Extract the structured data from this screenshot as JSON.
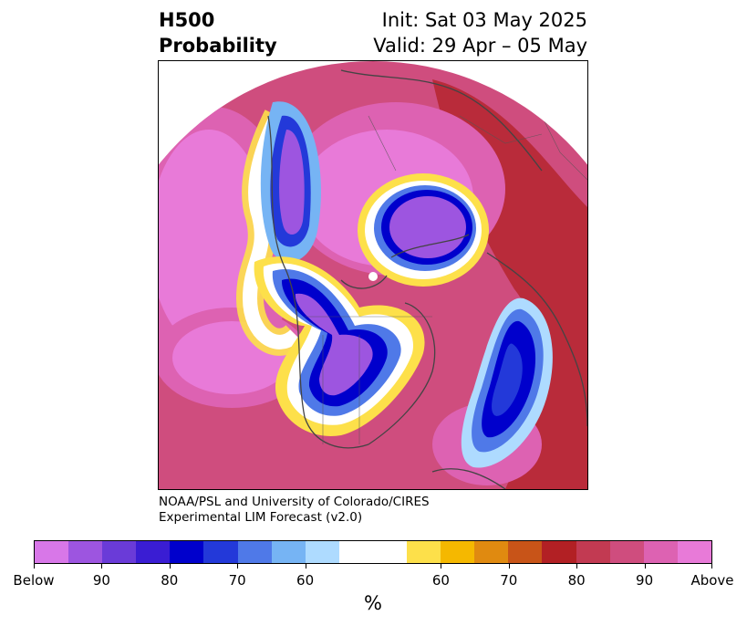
{
  "header": {
    "title_line1": "H500",
    "title_line2": "Probability",
    "init": "Init: Sat 03 May 2025",
    "valid": "Valid: 29 Apr – 05 May"
  },
  "credit": {
    "line1": "NOAA/PSL and University of Colorado/CIRES",
    "line2": "Experimental LIM Forecast (v2.0)"
  },
  "colorbar": {
    "units": "%",
    "colors": [
      "#d877e8",
      "#9d55e0",
      "#6a3bd8",
      "#3a1dd3",
      "#0000cc",
      "#2339d9",
      "#4f79e8",
      "#76b4f4",
      "#aedbff",
      "#ffffff",
      "#ffffff",
      "#fde04a",
      "#f5b800",
      "#e08a10",
      "#c85418",
      "#b22024",
      "#c23a52",
      "#cf4d7e",
      "#dd62b2",
      "#e87ad8"
    ],
    "ticks": [
      "Below",
      "90",
      "80",
      "70",
      "60",
      "60",
      "70",
      "80",
      "90",
      "Above"
    ],
    "tick_fracs": [
      0.0,
      0.1,
      0.2,
      0.3,
      0.4,
      0.6,
      0.7,
      0.8,
      0.9,
      1.0
    ]
  }
}
